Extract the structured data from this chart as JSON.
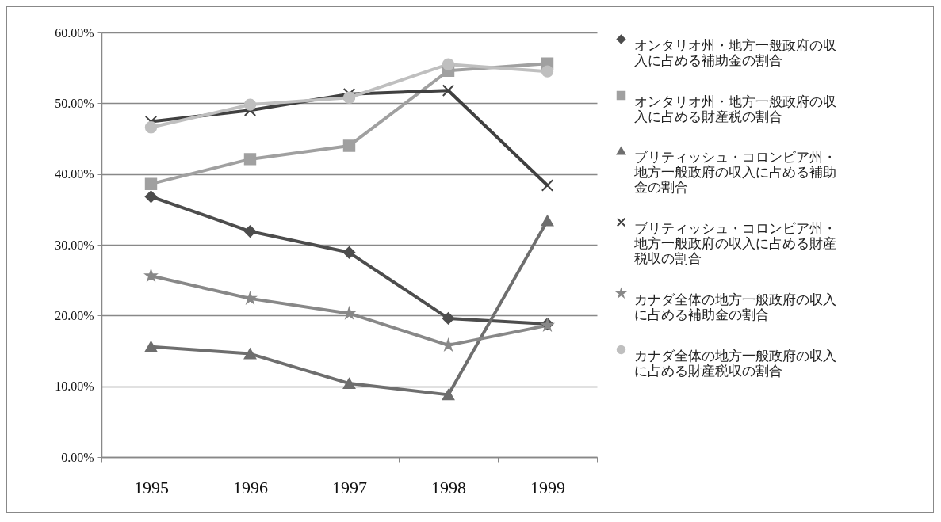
{
  "chart_data": {
    "type": "line",
    "categories": [
      "1995",
      "1996",
      "1997",
      "1998",
      "1999"
    ],
    "series": [
      {
        "name": "オンタリオ州・地方一般政府の収入に占める補助金の割合",
        "color": "#4d4d4d",
        "marker": "diamond",
        "values": [
          36.8,
          31.9,
          28.9,
          19.6,
          18.8
        ]
      },
      {
        "name": "オンタリオ州・地方一般政府の収入に占める財産税の割合",
        "color": "#a0a0a0",
        "marker": "square",
        "values": [
          38.6,
          42.1,
          44.0,
          54.6,
          55.6
        ]
      },
      {
        "name": "ブリティッシュ・コロンビア州・地方一般政府の収入に占める補助金の割合",
        "color": "#6e6e6e",
        "marker": "triangle",
        "values": [
          15.6,
          14.6,
          10.4,
          8.8,
          33.4
        ]
      },
      {
        "name": "ブリティッシュ・コロンビア州・地方一般政府の収入に占める財産税収の割合",
        "color": "#404040",
        "marker": "cross",
        "values": [
          47.4,
          49.0,
          51.3,
          51.8,
          38.4
        ]
      },
      {
        "name": "カナダ全体の地方一般政府の収入に占める補助金の割合",
        "color": "#888888",
        "marker": "star",
        "values": [
          25.6,
          22.4,
          20.3,
          15.8,
          18.6
        ]
      },
      {
        "name": "カナダ全体の地方一般政府の収入に占める財産税収の割合",
        "color": "#bfbfbf",
        "marker": "circle",
        "values": [
          46.6,
          49.8,
          50.8,
          55.5,
          54.5
        ]
      }
    ],
    "ylim": [
      0,
      60
    ],
    "yticks": [
      {
        "value": 0,
        "label": "0.00%"
      },
      {
        "value": 10,
        "label": "10.00%"
      },
      {
        "value": 20,
        "label": "20.00%"
      },
      {
        "value": 30,
        "label": "30.00%"
      },
      {
        "value": 40,
        "label": "40.00%"
      },
      {
        "value": 50,
        "label": "50.00%"
      },
      {
        "value": 60,
        "label": "60.00%"
      }
    ],
    "grid": "y",
    "legend": "right",
    "line_style": "solid"
  }
}
